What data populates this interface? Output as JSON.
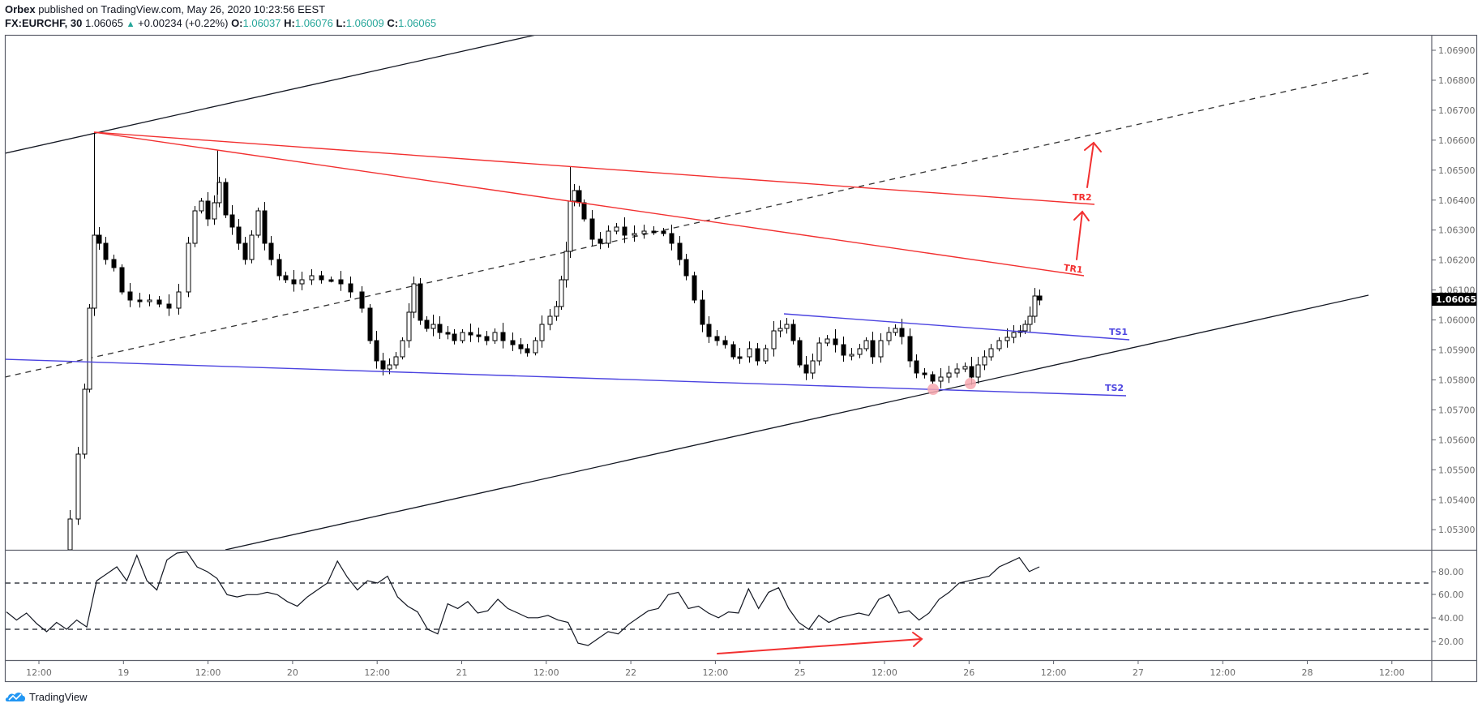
{
  "header": {
    "publisher": "Orbex",
    "published_text": "published on TradingView.com, May 26, 2020 10:23:56 EEST",
    "symbol": "FX:EURCHF, 30",
    "last": "1.06065",
    "change_icon": "triangle-up-icon",
    "change": "+0.00234 (+0.22%)",
    "o_label": "O:",
    "o": "1.06037",
    "h_label": "H:",
    "h": "1.06076",
    "l_label": "L:",
    "l": "1.06009",
    "c_label": "C:",
    "c": "1.06065"
  },
  "price_axis": {
    "ticks": [
      "1.06900",
      "1.06800",
      "1.06700",
      "1.06600",
      "1.06500",
      "1.06400",
      "1.06300",
      "1.06200",
      "1.06100",
      "1.06000",
      "1.05900",
      "1.05800",
      "1.05700",
      "1.05600",
      "1.05500",
      "1.05400",
      "1.05300"
    ],
    "last_price_label": "1.06065"
  },
  "rsi_axis": {
    "ticks": [
      "80.00",
      "60.00",
      "40.00",
      "20.00"
    ]
  },
  "time_axis": {
    "ticks": [
      "12:00",
      "19",
      "12:00",
      "20",
      "12:00",
      "21",
      "12:00",
      "22",
      "12:00",
      "25",
      "12:00",
      "26",
      "12:00",
      "27",
      "12:00",
      "28",
      "12:00"
    ]
  },
  "annotations": {
    "tr1": "TR1",
    "tr2": "TR2",
    "ts1": "TS1",
    "ts2": "TS2"
  },
  "colors": {
    "resistance": "#f23030",
    "support": "#4b43e0",
    "channel": "#131722",
    "rsi_line": "#131722",
    "touch_marker": "#f7a8b0"
  },
  "footer": {
    "brand": "TradingView",
    "logo_icon": "tradingview-cloud-icon"
  },
  "chart_data": {
    "type": "candlestick",
    "title": "FX:EURCHF, 30",
    "xlabel": "",
    "ylabel": "",
    "ylim": [
      1.0525,
      1.0695
    ],
    "grid": false,
    "x_ticks": [
      "12:00",
      "19",
      "12:00",
      "20",
      "12:00",
      "21",
      "12:00",
      "22",
      "12:00",
      "25",
      "12:00",
      "26",
      "12:00",
      "27",
      "12:00",
      "28",
      "12:00"
    ],
    "y_ticks": [
      1.069,
      1.068,
      1.067,
      1.066,
      1.065,
      1.064,
      1.063,
      1.062,
      1.061,
      1.06,
      1.059,
      1.058,
      1.057,
      1.056,
      1.055,
      1.054,
      1.053
    ],
    "last_price": 1.06065,
    "ohlc_last": {
      "open": 1.06037,
      "high": 1.06076,
      "low": 1.06009,
      "close": 1.06065
    },
    "price_path_approx": [
      {
        "t": "18 ~20:00",
        "close": 1.0525
      },
      {
        "t": "19 ~02:00",
        "close": 1.0635,
        "high": 1.0663
      },
      {
        "t": "19 ~06:00",
        "close": 1.061
      },
      {
        "t": "19 ~12:00",
        "close": 1.064,
        "high": 1.0656
      },
      {
        "t": "19 ~18:00",
        "close": 1.0615
      },
      {
        "t": "20 ~00:00",
        "close": 1.0612
      },
      {
        "t": "20 ~12:00",
        "close": 1.0583,
        "low": 1.0578
      },
      {
        "t": "20 ~18:00",
        "close": 1.0598
      },
      {
        "t": "21 ~06:00",
        "close": 1.059
      },
      {
        "t": "21 ~12:00",
        "close": 1.06
      },
      {
        "t": "21 ~16:00",
        "close": 1.0645,
        "high": 1.0651
      },
      {
        "t": "22 ~00:00",
        "close": 1.063
      },
      {
        "t": "22 ~06:00",
        "close": 1.0628
      },
      {
        "t": "22 ~12:00",
        "close": 1.06
      },
      {
        "t": "22 ~18:00",
        "close": 1.0592
      },
      {
        "t": "25 ~00:00",
        "close": 1.0598
      },
      {
        "t": "25 ~12:00",
        "close": 1.059
      },
      {
        "t": "25 ~18:00",
        "close": 1.0583,
        "low": 1.0576
      },
      {
        "t": "26 ~00:00",
        "close": 1.0585,
        "low": 1.0578
      },
      {
        "t": "26 ~06:00",
        "close": 1.0595
      },
      {
        "t": "26 ~10:00",
        "close": 1.06065,
        "high": 1.0611
      }
    ],
    "drawings": [
      {
        "name": "upper channel",
        "type": "line",
        "color": "#131722"
      },
      {
        "name": "mid channel",
        "type": "dashed line",
        "color": "#131722"
      },
      {
        "name": "lower channel",
        "type": "line",
        "color": "#131722"
      },
      {
        "name": "TR1",
        "type": "trendline",
        "color": "#f23030"
      },
      {
        "name": "TR2",
        "type": "trendline",
        "color": "#f23030"
      },
      {
        "name": "TS1",
        "type": "trendline",
        "color": "#4b43e0"
      },
      {
        "name": "TS2",
        "type": "trendline",
        "color": "#4b43e0"
      }
    ],
    "indicator": {
      "name": "RSI",
      "ylim": [
        0,
        100
      ],
      "levels": [
        70,
        30
      ],
      "y_ticks": [
        80,
        60,
        40,
        20
      ],
      "values_approx": [
        45,
        38,
        44,
        35,
        28,
        36,
        30,
        38,
        32,
        72,
        78,
        84,
        72,
        94,
        72,
        64,
        90,
        96,
        97,
        84,
        80,
        74,
        60,
        58,
        60,
        60,
        62,
        60,
        54,
        50,
        58,
        64,
        70,
        89,
        75,
        64,
        72,
        70,
        76,
        58,
        50,
        45,
        30,
        26,
        52,
        48,
        54,
        44,
        46,
        56,
        48,
        44,
        40,
        40,
        42,
        38,
        36,
        18,
        16,
        22,
        28,
        26,
        34,
        40,
        46,
        48,
        60,
        62,
        48,
        50,
        44,
        40,
        45,
        44,
        65,
        48,
        62,
        66,
        48,
        36,
        30,
        42,
        36,
        40,
        42,
        44,
        42,
        56,
        60,
        44,
        46,
        38,
        44,
        56,
        62,
        70,
        72,
        74,
        76,
        84,
        88,
        92,
        80,
        84
      ]
    }
  }
}
